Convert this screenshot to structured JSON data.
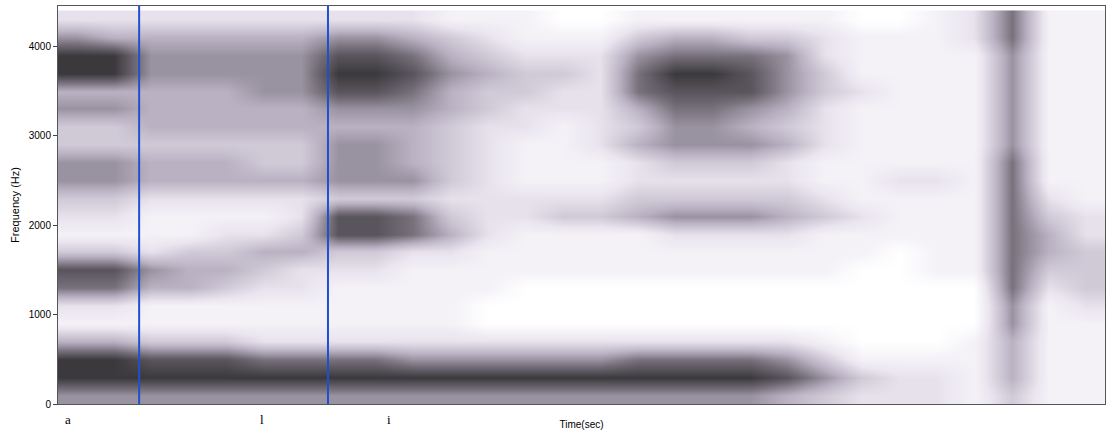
{
  "chart_data": {
    "type": "heatmap",
    "xlabel": "Time(sec)",
    "ylabel": "Frequency (Hz)",
    "xlim": [
      0,
      28
    ],
    "ylim": [
      0,
      4450
    ],
    "yticks": [
      0,
      1000,
      2000,
      3000,
      4000
    ],
    "tick_labels": "y",
    "grid": false,
    "zlim": [
      0,
      9
    ],
    "x": [
      0.5,
      1.5,
      2.5,
      3.5,
      4.5,
      5.5,
      6.5,
      7.5,
      8.5,
      9.5,
      10.5,
      11.5,
      12.5,
      13.5,
      14.5,
      15.5,
      16.5,
      17.5,
      18.5,
      19.5,
      20.5,
      21.5,
      22.5,
      23.5,
      24.5,
      25.5,
      26.5,
      27.5
    ],
    "y": [
      100,
      300,
      500,
      700,
      900,
      1100,
      1300,
      1500,
      1700,
      1900,
      2100,
      2300,
      2500,
      2700,
      2900,
      3100,
      3300,
      3500,
      3700,
      3900,
      4100,
      4300
    ],
    "cells_by_time": [
      [
        5,
        8,
        8,
        4,
        1,
        2,
        6,
        7,
        3,
        1,
        2,
        3,
        5,
        5,
        3,
        3,
        5,
        4,
        8,
        8,
        5,
        2
      ],
      [
        5,
        8,
        8,
        4,
        1,
        2,
        6,
        7,
        3,
        1,
        2,
        3,
        5,
        5,
        3,
        3,
        5,
        4,
        8,
        8,
        4,
        2
      ],
      [
        5,
        8,
        7,
        3,
        1,
        1,
        4,
        5,
        2,
        1,
        1,
        2,
        4,
        4,
        3,
        4,
        4,
        4,
        5,
        5,
        4,
        2
      ],
      [
        5,
        8,
        7,
        3,
        1,
        1,
        4,
        4,
        3,
        1,
        1,
        2,
        4,
        4,
        3,
        4,
        4,
        4,
        5,
        5,
        4,
        2
      ],
      [
        5,
        8,
        7,
        3,
        1,
        1,
        3,
        4,
        3,
        2,
        1,
        2,
        4,
        4,
        3,
        4,
        4,
        4,
        5,
        5,
        4,
        2
      ],
      [
        5,
        8,
        6,
        2,
        1,
        1,
        2,
        3,
        4,
        2,
        1,
        2,
        4,
        3,
        3,
        4,
        4,
        5,
        5,
        5,
        4,
        2
      ],
      [
        5,
        8,
        6,
        2,
        1,
        1,
        2,
        2,
        4,
        3,
        2,
        2,
        4,
        3,
        3,
        4,
        4,
        5,
        5,
        5,
        4,
        2
      ],
      [
        5,
        8,
        6,
        2,
        1,
        1,
        1,
        2,
        3,
        7,
        7,
        3,
        5,
        5,
        5,
        4,
        5,
        7,
        8,
        7,
        5,
        2
      ],
      [
        5,
        8,
        6,
        2,
        1,
        1,
        1,
        2,
        3,
        7,
        7,
        3,
        5,
        5,
        5,
        4,
        5,
        7,
        8,
        7,
        5,
        2
      ],
      [
        5,
        8,
        5,
        2,
        1,
        1,
        1,
        1,
        2,
        6,
        6,
        3,
        5,
        4,
        4,
        4,
        5,
        6,
        7,
        6,
        4,
        2
      ],
      [
        5,
        8,
        5,
        2,
        1,
        1,
        1,
        1,
        2,
        4,
        3,
        2,
        3,
        3,
        3,
        3,
        4,
        4,
        5,
        4,
        3,
        1
      ],
      [
        5,
        8,
        5,
        2,
        0,
        0,
        1,
        1,
        1,
        2,
        2,
        2,
        2,
        2,
        2,
        2,
        3,
        3,
        4,
        3,
        2,
        1
      ],
      [
        5,
        8,
        5,
        2,
        0,
        0,
        0,
        1,
        1,
        1,
        2,
        2,
        1,
        1,
        1,
        2,
        2,
        3,
        3,
        2,
        1,
        1
      ],
      [
        5,
        8,
        5,
        2,
        0,
        0,
        0,
        1,
        1,
        1,
        3,
        2,
        1,
        1,
        1,
        1,
        2,
        2,
        3,
        2,
        1,
        0
      ],
      [
        5,
        8,
        5,
        2,
        0,
        0,
        0,
        1,
        1,
        1,
        3,
        2,
        1,
        1,
        2,
        2,
        2,
        2,
        2,
        2,
        1,
        0
      ],
      [
        5,
        8,
        6,
        2,
        0,
        0,
        0,
        1,
        1,
        1,
        4,
        3,
        2,
        2,
        4,
        3,
        4,
        6,
        6,
        5,
        3,
        1
      ],
      [
        5,
        8,
        6,
        2,
        0,
        0,
        0,
        1,
        1,
        2,
        5,
        3,
        2,
        3,
        5,
        5,
        6,
        7,
        8,
        6,
        4,
        1
      ],
      [
        5,
        8,
        6,
        2,
        0,
        0,
        0,
        1,
        1,
        2,
        5,
        3,
        2,
        3,
        5,
        5,
        6,
        7,
        8,
        6,
        4,
        1
      ],
      [
        5,
        8,
        6,
        2,
        0,
        0,
        0,
        1,
        1,
        2,
        5,
        3,
        2,
        3,
        5,
        4,
        5,
        7,
        7,
        6,
        3,
        1
      ],
      [
        4,
        7,
        5,
        2,
        0,
        0,
        0,
        1,
        1,
        2,
        4,
        3,
        2,
        2,
        4,
        3,
        4,
        5,
        5,
        5,
        3,
        1
      ],
      [
        3,
        5,
        3,
        1,
        0,
        0,
        0,
        1,
        1,
        1,
        3,
        2,
        1,
        1,
        2,
        2,
        2,
        3,
        3,
        2,
        2,
        1
      ],
      [
        2,
        3,
        1,
        0,
        0,
        0,
        0,
        0,
        1,
        1,
        2,
        1,
        1,
        1,
        1,
        1,
        1,
        2,
        1,
        1,
        1,
        0
      ],
      [
        2,
        2,
        1,
        0,
        0,
        0,
        0,
        0,
        0,
        1,
        1,
        1,
        2,
        1,
        1,
        1,
        1,
        1,
        1,
        1,
        1,
        0
      ],
      [
        2,
        2,
        1,
        0,
        0,
        0,
        0,
        1,
        1,
        1,
        1,
        1,
        2,
        1,
        1,
        1,
        1,
        1,
        1,
        1,
        1,
        1
      ],
      [
        1,
        1,
        1,
        1,
        0,
        0,
        0,
        1,
        1,
        1,
        1,
        1,
        1,
        1,
        1,
        1,
        1,
        1,
        1,
        1,
        2,
        2
      ],
      [
        3,
        4,
        4,
        4,
        5,
        5,
        6,
        6,
        6,
        6,
        6,
        6,
        6,
        6,
        5,
        5,
        5,
        5,
        5,
        5,
        6,
        6
      ],
      [
        1,
        1,
        1,
        1,
        1,
        1,
        2,
        3,
        4,
        4,
        3,
        2,
        1,
        1,
        1,
        1,
        1,
        1,
        1,
        1,
        1,
        1
      ],
      [
        1,
        1,
        1,
        1,
        1,
        2,
        3,
        3,
        3,
        2,
        2,
        1,
        1,
        1,
        1,
        1,
        1,
        1,
        1,
        1,
        1,
        1
      ]
    ],
    "segments": {
      "labels": [
        "a",
        "l",
        "i"
      ],
      "label_x": [
        0.13,
        5.35,
        8.74
      ],
      "boundaries": [
        2.17,
        7.22
      ],
      "color": "#1f4fd0"
    }
  }
}
